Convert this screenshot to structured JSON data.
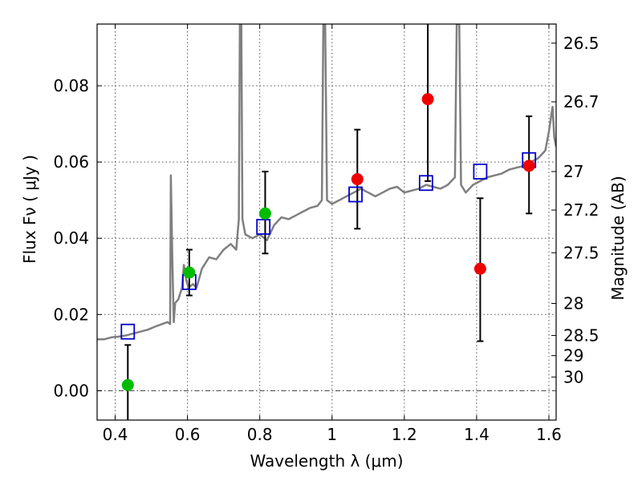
{
  "chart_data": {
    "type": "scatter",
    "xlabel": "Wavelength  λ (μm)",
    "ylabel": "Flux  Fν  ( μJy )",
    "ylabel_right": "Magnitude (AB)",
    "xlim": [
      0.35,
      1.62
    ],
    "ylim": [
      -0.0077,
      0.0962
    ],
    "x_ticks": [
      0.4,
      0.6,
      0.8,
      1.0,
      1.2,
      1.4,
      1.6
    ],
    "x_tick_labels": [
      "0.4",
      "0.6",
      "0.8",
      "1",
      "1.2",
      "1.4",
      "1.6"
    ],
    "y_ticks": [
      0.0,
      0.02,
      0.04,
      0.06,
      0.08
    ],
    "y_tick_labels": [
      "0.00",
      "0.02",
      "0.04",
      "0.06",
      "0.08"
    ],
    "right_ticks": [
      {
        "flux": 0.0912,
        "label": "26.5"
      },
      {
        "flux": 0.0758,
        "label": "26.7"
      },
      {
        "flux": 0.0575,
        "label": "27"
      },
      {
        "flux": 0.0474,
        "label": "27.2"
      },
      {
        "flux": 0.0362,
        "label": "27.5"
      },
      {
        "flux": 0.0229,
        "label": "28"
      },
      {
        "flux": 0.0145,
        "label": "28.5"
      },
      {
        "flux": 0.0092,
        "label": "29"
      },
      {
        "flux": 0.0036,
        "label": "30"
      }
    ],
    "grid": true,
    "zero_line": true,
    "series": [
      {
        "kind": "line",
        "color": "#7f7f7f",
        "points": [
          [
            0.35,
            0.0135
          ],
          [
            0.37,
            0.0135
          ],
          [
            0.39,
            0.014
          ],
          [
            0.41,
            0.0142
          ],
          [
            0.43,
            0.0145
          ],
          [
            0.45,
            0.015
          ],
          [
            0.47,
            0.0155
          ],
          [
            0.49,
            0.016
          ],
          [
            0.51,
            0.0168
          ],
          [
            0.53,
            0.0175
          ],
          [
            0.545,
            0.018
          ],
          [
            0.552,
            0.0175
          ],
          [
            0.554,
            0.0565
          ],
          [
            0.558,
            0.035
          ],
          [
            0.562,
            0.018
          ],
          [
            0.566,
            0.023
          ],
          [
            0.575,
            0.024
          ],
          [
            0.585,
            0.027
          ],
          [
            0.59,
            0.033
          ],
          [
            0.597,
            0.029
          ],
          [
            0.603,
            0.027
          ],
          [
            0.615,
            0.028
          ],
          [
            0.625,
            0.027
          ],
          [
            0.64,
            0.032
          ],
          [
            0.66,
            0.035
          ],
          [
            0.68,
            0.0345
          ],
          [
            0.7,
            0.037
          ],
          [
            0.72,
            0.0385
          ],
          [
            0.735,
            0.037
          ],
          [
            0.742,
            0.045
          ],
          [
            0.745,
            0.0962
          ],
          [
            0.749,
            0.0962
          ],
          [
            0.752,
            0.045
          ],
          [
            0.76,
            0.041
          ],
          [
            0.78,
            0.04
          ],
          [
            0.8,
            0.041
          ],
          [
            0.82,
            0.0395
          ],
          [
            0.84,
            0.0435
          ],
          [
            0.86,
            0.0455
          ],
          [
            0.88,
            0.045
          ],
          [
            0.9,
            0.046
          ],
          [
            0.92,
            0.047
          ],
          [
            0.94,
            0.048
          ],
          [
            0.96,
            0.0485
          ],
          [
            0.972,
            0.05
          ],
          [
            0.976,
            0.0962
          ],
          [
            0.981,
            0.0962
          ],
          [
            0.986,
            0.05
          ],
          [
            1.0,
            0.049
          ],
          [
            1.02,
            0.05
          ],
          [
            1.04,
            0.051
          ],
          [
            1.06,
            0.052
          ],
          [
            1.08,
            0.053
          ],
          [
            1.1,
            0.052
          ],
          [
            1.12,
            0.051
          ],
          [
            1.14,
            0.052
          ],
          [
            1.16,
            0.053
          ],
          [
            1.18,
            0.0535
          ],
          [
            1.2,
            0.052
          ],
          [
            1.22,
            0.0525
          ],
          [
            1.24,
            0.053
          ],
          [
            1.26,
            0.054
          ],
          [
            1.28,
            0.0535
          ],
          [
            1.3,
            0.053
          ],
          [
            1.32,
            0.054
          ],
          [
            1.34,
            0.056
          ],
          [
            1.345,
            0.0962
          ],
          [
            1.352,
            0.0962
          ],
          [
            1.357,
            0.054
          ],
          [
            1.37,
            0.052
          ],
          [
            1.39,
            0.054
          ],
          [
            1.41,
            0.055
          ],
          [
            1.43,
            0.056
          ],
          [
            1.45,
            0.0565
          ],
          [
            1.47,
            0.057
          ],
          [
            1.49,
            0.058
          ],
          [
            1.51,
            0.0585
          ],
          [
            1.53,
            0.059
          ],
          [
            1.55,
            0.06
          ],
          [
            1.57,
            0.061
          ],
          [
            1.59,
            0.063
          ],
          [
            1.6,
            0.068
          ],
          [
            1.61,
            0.0745
          ],
          [
            1.615,
            0.0665
          ],
          [
            1.62,
            0.064
          ]
        ]
      },
      {
        "kind": "model-squares",
        "color": "#0000cc",
        "points": [
          [
            0.435,
            0.0155
          ],
          [
            0.605,
            0.0285
          ],
          [
            0.81,
            0.043
          ],
          [
            1.065,
            0.0515
          ],
          [
            1.26,
            0.0545
          ],
          [
            1.41,
            0.0575
          ],
          [
            1.545,
            0.0605
          ]
        ]
      },
      {
        "kind": "green-points",
        "color": "#00bb00",
        "points": [
          {
            "x": 0.435,
            "y": 0.0015,
            "lo": -0.0077,
            "hi": 0.012
          },
          {
            "x": 0.605,
            "y": 0.031,
            "lo": 0.025,
            "hi": 0.037
          },
          {
            "x": 0.815,
            "y": 0.0465,
            "lo": 0.036,
            "hi": 0.0575
          }
        ]
      },
      {
        "kind": "red-points",
        "color": "#ee0000",
        "points": [
          {
            "x": 1.07,
            "y": 0.0555,
            "lo": 0.0425,
            "hi": 0.0685
          },
          {
            "x": 1.265,
            "y": 0.0765,
            "lo": 0.055,
            "hi": 0.0962
          },
          {
            "x": 1.41,
            "y": 0.032,
            "lo": 0.013,
            "hi": 0.0505
          },
          {
            "x": 1.545,
            "y": 0.059,
            "lo": 0.0465,
            "hi": 0.072
          }
        ]
      }
    ]
  }
}
